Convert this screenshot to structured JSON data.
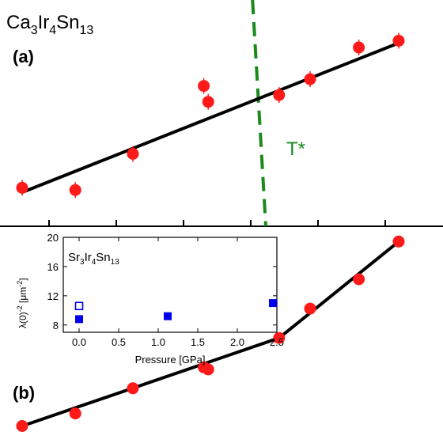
{
  "chart_data": [
    {
      "type": "scatter",
      "panel_label": "(a)",
      "compound": {
        "base": "Ca",
        "n1": "3",
        "el2": "Ir",
        "n2": "4",
        "el3": "Sn",
        "n3": "13"
      },
      "xlim": [
        0,
        10
      ],
      "ylim": [
        0,
        10
      ],
      "series": [
        {
          "points": [
            [
              0.5,
              1.7
            ],
            [
              1.7,
              1.6
            ],
            [
              3.0,
              3.2
            ],
            [
              4.6,
              6.2
            ],
            [
              4.7,
              5.5
            ],
            [
              6.3,
              5.8
            ],
            [
              7.0,
              6.5
            ],
            [
              8.1,
              7.9
            ],
            [
              9.0,
              8.2
            ]
          ],
          "color": "#ff1a1a"
        }
      ],
      "fit_line": [
        [
          0.5,
          1.5
        ],
        [
          9.0,
          8.1
        ]
      ],
      "transition": {
        "label": "T*",
        "color": "#1a8a1a",
        "x_top": 5.7,
        "x_bottom": 6.0
      }
    },
    {
      "type": "line",
      "panel_label": "(b)",
      "xlim": [
        0,
        10
      ],
      "ylim": [
        0,
        10
      ],
      "series": [
        {
          "points": [
            [
              0.5,
              1.0
            ],
            [
              1.7,
              1.6
            ],
            [
              3.0,
              2.8
            ],
            [
              4.6,
              3.8
            ],
            [
              4.7,
              3.7
            ],
            [
              6.3,
              5.2
            ],
            [
              7.0,
              6.6
            ],
            [
              8.1,
              8.0
            ],
            [
              9.0,
              9.8
            ]
          ],
          "color": "#ff1a1a"
        }
      ],
      "fit_line": [
        [
          0.5,
          1.0
        ],
        [
          6.3,
          5.2
        ],
        [
          9.0,
          9.8
        ]
      ]
    },
    {
      "type": "scatter",
      "compound": {
        "base": "Sr",
        "n1": "3",
        "el2": "Ir",
        "n2": "4",
        "el3": "Sn",
        "n3": "13"
      },
      "xlabel": "Pressure [GPa]",
      "ylabel_main": "λ(0)",
      "ylabel_sup1": "-2",
      "ylabel_unit": " [μm",
      "ylabel_sup2": "-2",
      "ylabel_close": "]",
      "xlim": [
        -0.2,
        2.5
      ],
      "ylim": [
        7,
        20
      ],
      "xticks": [
        "0.0",
        "0.5",
        "1.0",
        "1.5",
        "2.0",
        "2.5"
      ],
      "yticks": [
        "8",
        "12",
        "16",
        "20"
      ],
      "series": [
        {
          "style": "filled",
          "color": "#0000ee",
          "points": [
            [
              0.0,
              8.8
            ],
            [
              1.12,
              9.2
            ],
            [
              2.45,
              11.0
            ]
          ]
        },
        {
          "style": "open",
          "color": "#0000ee",
          "points": [
            [
              0.0,
              10.6
            ]
          ]
        }
      ]
    }
  ]
}
